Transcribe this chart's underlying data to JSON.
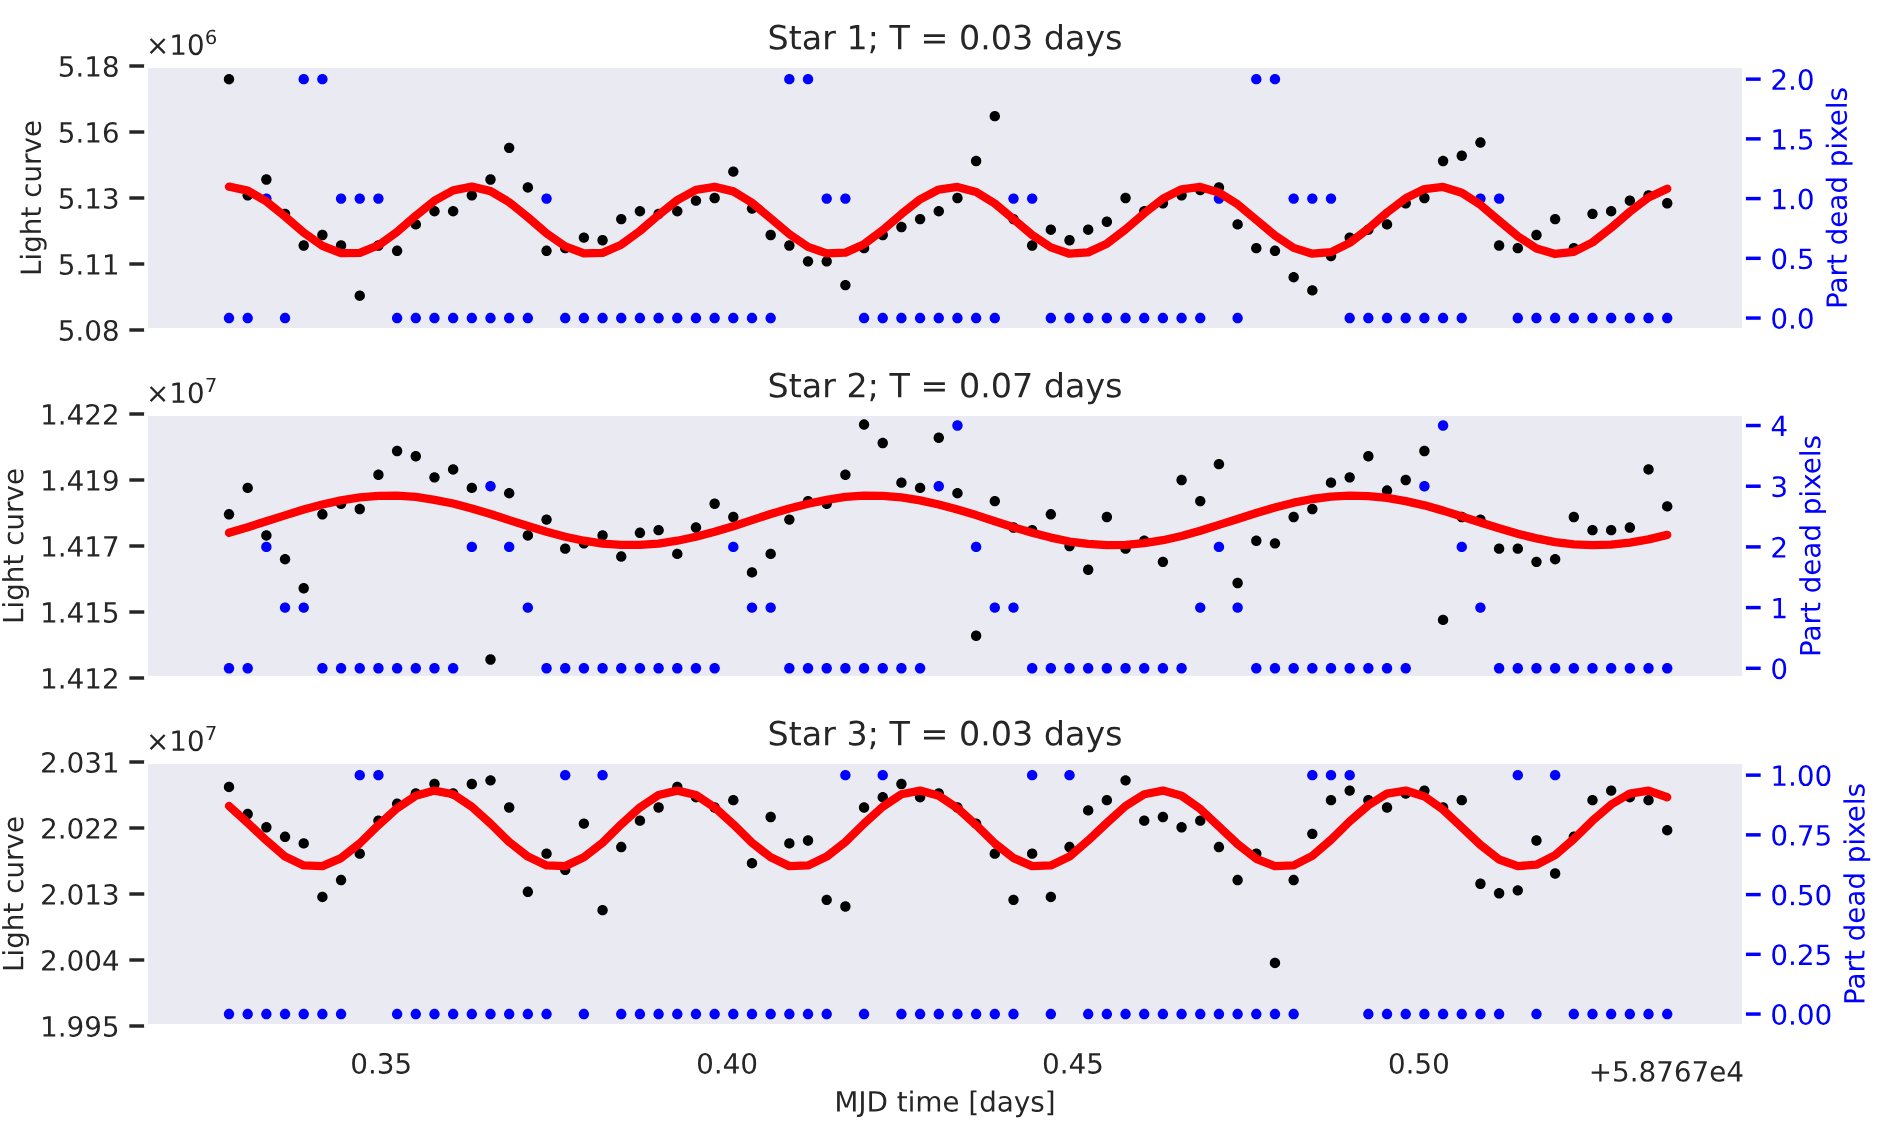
{
  "chart_data": [
    {
      "type": "scatter",
      "title": "Star 1; T = 0.03 days",
      "ylabel": "Light curve",
      "y2label": "Part dead pixels",
      "marker": "circle",
      "grid": false,
      "tick_labels": "y",
      "annotations": [
        "×10$^{6}$"
      ],
      "xlim": [
        0.316,
        0.547
      ],
      "ylim": [
        5.08,
        5.18
      ],
      "yticks": [
        5.08,
        {
          "value": 5.105,
          "label": "5.11"
        },
        5.13,
        {
          "value": 5.155,
          "label": "5.16"
        },
        5.18
      ],
      "y2lim": [
        -0.1,
        2.11
      ],
      "y2ticks": [
        {
          "value": 0,
          "label": "0.0"
        },
        0.5,
        {
          "value": 1,
          "label": "1.0"
        },
        1.5,
        {
          "value": 2,
          "label": "2.0"
        }
      ],
      "x": [
        0.328,
        0.3307,
        0.3334,
        0.3361,
        0.3388,
        0.3415,
        0.3442,
        0.3469,
        0.3496,
        0.3523,
        0.355,
        0.3577,
        0.3604,
        0.3631,
        0.3658,
        0.3685,
        0.3712,
        0.3739,
        0.3766,
        0.3793,
        0.382,
        0.3847,
        0.3874,
        0.3901,
        0.3928,
        0.3955,
        0.3982,
        0.4009,
        0.4036,
        0.4063,
        0.409,
        0.4117,
        0.4144,
        0.4171,
        0.4198,
        0.4225,
        0.4252,
        0.4279,
        0.4306,
        0.4333,
        0.436,
        0.4387,
        0.4414,
        0.4441,
        0.4468,
        0.4495,
        0.4522,
        0.4549,
        0.4576,
        0.4603,
        0.463,
        0.4657,
        0.4684,
        0.4711,
        0.4738,
        0.4765,
        0.4792,
        0.4819,
        0.4846,
        0.4873,
        0.49,
        0.4927,
        0.4954,
        0.4981,
        0.5008,
        0.5035,
        0.5062,
        0.5089,
        0.5116,
        0.5143,
        0.517,
        0.5197,
        0.5224,
        0.5251,
        0.5278,
        0.5305,
        0.5332,
        0.5359
      ],
      "series": [
        {
          "color": "#000000",
          "values": [
            5.175,
            5.131,
            5.137,
            5.124,
            5.112,
            5.116,
            5.112,
            5.093,
            5.112,
            5.11,
            5.12,
            5.125,
            5.125,
            5.131,
            5.137,
            5.149,
            5.134,
            5.11,
            5.111,
            5.115,
            5.114,
            5.122,
            5.125,
            5.124,
            5.125,
            5.129,
            5.13,
            5.14,
            5.126,
            5.116,
            5.112,
            5.106,
            5.106,
            5.097,
            5.111,
            5.116,
            5.119,
            5.122,
            5.125,
            5.13,
            5.144,
            5.161,
            5.122,
            5.112,
            5.118,
            5.114,
            5.118,
            5.121,
            5.13,
            5.125,
            5.128,
            5.131,
            5.133,
            5.134,
            5.12,
            5.111,
            5.11,
            5.1,
            5.095,
            5.108,
            5.115,
            5.118,
            5.12,
            5.128,
            5.13,
            5.144,
            5.146,
            5.151,
            5.112,
            5.111,
            5.116,
            5.122,
            5.111,
            5.124,
            5.125,
            5.129,
            5.131,
            5.128
          ]
        },
        {
          "type": "line",
          "marker": "none",
          "color": "#ff0000",
          "values": [
            5.1343,
            5.1328,
            5.1287,
            5.123,
            5.1169,
            5.1119,
            5.1091,
            5.1092,
            5.1121,
            5.1172,
            5.1233,
            5.129,
            5.1329,
            5.1343,
            5.1326,
            5.1284,
            5.1227,
            5.1166,
            5.1117,
            5.109,
            5.1092,
            5.1123,
            5.1175,
            5.1236,
            5.1292,
            5.1331,
            5.1342,
            5.1325,
            5.1282,
            5.1223,
            5.1163,
            5.1115,
            5.109,
            5.1093,
            5.1125,
            5.1178,
            5.1239,
            5.1295,
            5.1332,
            5.1342,
            5.1323,
            5.1279,
            5.122,
            5.116,
            5.1113,
            5.1089,
            5.1094,
            5.1127,
            5.1181,
            5.1242,
            5.1297,
            5.1333,
            5.1342,
            5.1321,
            5.1276,
            5.1217,
            5.1158,
            5.1111,
            5.1089,
            5.1095,
            5.113,
            5.1184,
            5.1245,
            5.1299,
            5.1334,
            5.1342,
            5.132,
            5.1274,
            5.1214,
            5.1155,
            5.1109,
            5.1088,
            5.1096,
            5.1132,
            5.1187,
            5.1248,
            5.1302,
            5.1335
          ]
        },
        {
          "color": "#0000ff",
          "axis": "y2",
          "values": [
            0,
            0,
            1,
            0,
            2,
            2,
            1,
            1,
            1,
            0,
            0,
            0,
            0,
            0,
            0,
            0,
            0,
            1,
            0,
            0,
            0,
            0,
            0,
            0,
            0,
            0,
            0,
            0,
            0,
            0,
            2,
            2,
            1,
            1,
            0,
            0,
            0,
            0,
            0,
            0,
            0,
            0,
            1,
            1,
            0,
            0,
            0,
            0,
            0,
            0,
            0,
            0,
            0,
            1,
            0,
            2,
            2,
            1,
            1,
            1,
            0,
            0,
            0,
            0,
            0,
            0,
            0,
            1,
            1,
            0,
            0,
            0,
            0,
            0,
            0,
            0,
            0,
            0
          ]
        }
      ]
    },
    {
      "type": "scatter",
      "title": "Star 2; T = 0.07 days",
      "ylabel": "Light curve",
      "y2label": "Part dead pixels",
      "marker": "circle",
      "grid": false,
      "tick_labels": "y",
      "annotations": [
        "×10$^{7}$"
      ],
      "xlim": [
        0.316,
        0.547
      ],
      "ylim": [
        1.412,
        1.422
      ],
      "yticks": [
        1.412,
        {
          "value": 1.4145,
          "label": "1.415"
        },
        1.417,
        {
          "value": 1.4195,
          "label": "1.419"
        },
        1.422
      ],
      "y2lim": [
        -0.16,
        4.19
      ],
      "y2ticks": [
        0,
        1,
        2,
        3,
        4
      ],
      "x": [
        0.328,
        0.3307,
        0.3334,
        0.3361,
        0.3388,
        0.3415,
        0.3442,
        0.3469,
        0.3496,
        0.3523,
        0.355,
        0.3577,
        0.3604,
        0.3631,
        0.3658,
        0.3685,
        0.3712,
        0.3739,
        0.3766,
        0.3793,
        0.382,
        0.3847,
        0.3874,
        0.3901,
        0.3928,
        0.3955,
        0.3982,
        0.4009,
        0.4036,
        0.4063,
        0.409,
        0.4117,
        0.4144,
        0.4171,
        0.4198,
        0.4225,
        0.4252,
        0.4279,
        0.4306,
        0.4333,
        0.436,
        0.4387,
        0.4414,
        0.4441,
        0.4468,
        0.4495,
        0.4522,
        0.4549,
        0.4576,
        0.4603,
        0.463,
        0.4657,
        0.4684,
        0.4711,
        0.4738,
        0.4765,
        0.4792,
        0.4819,
        0.4846,
        0.4873,
        0.49,
        0.4927,
        0.4954,
        0.4981,
        0.5008,
        0.5035,
        0.5062,
        0.5089,
        0.5116,
        0.5143,
        0.517,
        0.5197,
        0.5224,
        0.5251,
        0.5278,
        0.5305,
        0.5332,
        0.5359
      ],
      "series": [
        {
          "color": "#000000",
          "values": [
            1.4182,
            1.4192,
            1.4174,
            1.4165,
            1.4154,
            1.4182,
            1.4186,
            1.4184,
            1.4197,
            1.4206,
            1.4204,
            1.4196,
            1.4199,
            1.4192,
            1.4127,
            1.419,
            1.4174,
            1.418,
            1.4169,
            1.4171,
            1.4174,
            1.4166,
            1.4175,
            1.4176,
            1.4167,
            1.4177,
            1.4186,
            1.4181,
            1.416,
            1.4167,
            1.418,
            1.4187,
            1.4186,
            1.4197,
            1.4216,
            1.4209,
            1.4194,
            1.4192,
            1.4211,
            1.419,
            1.4136,
            1.4187,
            1.4177,
            1.4176,
            1.4182,
            1.417,
            1.4161,
            1.4181,
            1.4169,
            1.4172,
            1.4164,
            1.4195,
            1.4187,
            1.4201,
            1.4156,
            1.4172,
            1.4171,
            1.4181,
            1.4184,
            1.4194,
            1.4196,
            1.4204,
            1.4191,
            1.4195,
            1.4206,
            1.4142,
            1.4181,
            1.418,
            1.4169,
            1.4169,
            1.4164,
            1.4165,
            1.4181,
            1.4176,
            1.4176,
            1.4177,
            1.4199,
            1.4185
          ]
        },
        {
          "type": "line",
          "marker": "none",
          "color": "#ff0000",
          "values": [
            1.4175,
            1.41771,
            1.41794,
            1.41816,
            1.41838,
            1.41857,
            1.41873,
            1.41884,
            1.4189,
            1.41891,
            1.41886,
            1.41875,
            1.41861,
            1.41842,
            1.41821,
            1.41798,
            1.41776,
            1.41754,
            1.41735,
            1.4172,
            1.41709,
            1.41704,
            1.41704,
            1.41709,
            1.4172,
            1.41735,
            1.41754,
            1.41775,
            1.41798,
            1.41821,
            1.41842,
            1.4186,
            1.41875,
            1.41886,
            1.41891,
            1.4189,
            1.41884,
            1.41873,
            1.41857,
            1.41838,
            1.41817,
            1.41794,
            1.41771,
            1.4175,
            1.41732,
            1.41717,
            1.41708,
            1.41703,
            1.41704,
            1.41711,
            1.41722,
            1.41738,
            1.41758,
            1.4178,
            1.41802,
            1.41825,
            1.41846,
            1.41864,
            1.41878,
            1.41887,
            1.41891,
            1.41889,
            1.41882,
            1.4187,
            1.41854,
            1.41834,
            1.41812,
            1.41789,
            1.41767,
            1.41746,
            1.41729,
            1.41715,
            1.41706,
            1.41703,
            1.41705,
            1.41713,
            1.41725,
            1.41742
          ]
        },
        {
          "color": "#0000ff",
          "axis": "y2",
          "values": [
            0,
            0,
            2,
            1,
            1,
            0,
            0,
            0,
            0,
            0,
            0,
            0,
            0,
            2,
            3,
            2,
            1,
            0,
            0,
            0,
            0,
            0,
            0,
            0,
            0,
            0,
            0,
            2,
            1,
            1,
            0,
            0,
            0,
            0,
            0,
            0,
            0,
            0,
            3,
            4,
            2,
            1,
            1,
            0,
            0,
            0,
            0,
            0,
            0,
            0,
            0,
            0,
            1,
            2,
            1,
            0,
            0,
            0,
            0,
            0,
            0,
            0,
            0,
            0,
            3,
            4,
            2,
            1,
            0,
            0,
            0,
            0,
            0,
            0,
            0,
            0,
            0,
            0
          ]
        }
      ]
    },
    {
      "type": "scatter",
      "title": "Star 3; T = 0.03 days",
      "xlabel": "MJD time [days]",
      "ylabel": "Light curve",
      "y2label": "Part dead pixels",
      "marker": "circle",
      "grid": false,
      "annotations": [
        "×10$^{7}$",
        "+5.8767e4"
      ],
      "xlim": [
        0.316,
        0.547
      ],
      "xticks": [
        0.35,
        {
          "value": 0.4,
          "label": "0.40"
        },
        0.45,
        {
          "value": 0.5,
          "label": "0.50"
        }
      ],
      "ylim": [
        1.995,
        2.031
      ],
      "yticks": [
        1.995,
        2.004,
        2.013,
        2.022,
        2.031
      ],
      "y2lim": [
        -0.05,
        1.055
      ],
      "y2ticks": [
        {
          "value": 0,
          "label": "0.00"
        },
        0.25,
        {
          "value": 0.5,
          "label": "0.50"
        },
        0.75,
        {
          "value": 1,
          "label": "1.00"
        }
      ],
      "x": [
        0.328,
        0.3307,
        0.3334,
        0.3361,
        0.3388,
        0.3415,
        0.3442,
        0.3469,
        0.3496,
        0.3523,
        0.355,
        0.3577,
        0.3604,
        0.3631,
        0.3658,
        0.3685,
        0.3712,
        0.3739,
        0.3766,
        0.3793,
        0.382,
        0.3847,
        0.3874,
        0.3901,
        0.3928,
        0.3955,
        0.3982,
        0.4009,
        0.4036,
        0.4063,
        0.409,
        0.4117,
        0.4144,
        0.4171,
        0.4198,
        0.4225,
        0.4252,
        0.4279,
        0.4306,
        0.4333,
        0.436,
        0.4387,
        0.4414,
        0.4441,
        0.4468,
        0.4495,
        0.4522,
        0.4549,
        0.4576,
        0.4603,
        0.463,
        0.4657,
        0.4684,
        0.4711,
        0.4738,
        0.4765,
        0.4792,
        0.4819,
        0.4846,
        0.4873,
        0.49,
        0.4927,
        0.4954,
        0.4981,
        0.5008,
        0.5035,
        0.5062,
        0.5089,
        0.5116,
        0.5143,
        0.517,
        0.5197,
        0.5224,
        0.5251,
        0.5278,
        0.5305,
        0.5332,
        0.5359
      ],
      "series": [
        {
          "color": "#000000",
          "values": [
            2.0276,
            2.0239,
            2.0221,
            2.0208,
            2.0199,
            2.0126,
            2.0149,
            2.0185,
            2.023,
            2.0253,
            2.0267,
            2.028,
            2.0267,
            2.028,
            2.0285,
            2.0248,
            2.0133,
            2.0185,
            2.0163,
            2.0226,
            2.0108,
            2.0194,
            2.023,
            2.0248,
            2.0276,
            2.0262,
            2.0248,
            2.0258,
            2.0172,
            2.0235,
            2.0199,
            2.0203,
            2.0122,
            2.0113,
            2.0248,
            2.0262,
            2.028,
            2.0262,
            2.0267,
            2.0248,
            2.0226,
            2.0185,
            2.0122,
            2.0185,
            2.0126,
            2.0194,
            2.0244,
            2.0258,
            2.0285,
            2.023,
            2.0235,
            2.0221,
            2.023,
            2.0194,
            2.0149,
            2.0185,
            2.0036,
            2.0149,
            2.0212,
            2.0258,
            2.0271,
            2.0258,
            2.0248,
            2.0267,
            2.0271,
            2.0248,
            2.0258,
            2.0144,
            2.0131,
            2.0135,
            2.0203,
            2.0158,
            2.0208,
            2.0258,
            2.0271,
            2.0262,
            2.0258,
            2.0217
          ]
        },
        {
          "type": "line",
          "marker": "none",
          "color": "#ff0000",
          "values": [
            2.025,
            2.0227,
            2.0203,
            2.0181,
            2.0169,
            2.0168,
            2.0179,
            2.0199,
            2.0224,
            2.0247,
            2.0264,
            2.0271,
            2.0266,
            2.0249,
            2.0226,
            2.0201,
            2.0181,
            2.0169,
            2.0168,
            2.018,
            2.02,
            2.0225,
            2.0248,
            2.0265,
            2.0271,
            2.0265,
            2.0248,
            2.0225,
            2.02,
            2.018,
            2.0168,
            2.0169,
            2.0181,
            2.0201,
            2.0226,
            2.0249,
            2.0266,
            2.0271,
            2.0264,
            2.0247,
            2.0224,
            2.0199,
            2.0179,
            2.0168,
            2.0169,
            2.0181,
            2.0203,
            2.0227,
            2.025,
            2.0266,
            2.0271,
            2.0264,
            2.0246,
            2.0222,
            2.0198,
            2.0178,
            2.0168,
            2.0169,
            2.0182,
            2.0204,
            2.0229,
            2.0251,
            2.0267,
            2.0271,
            2.0263,
            2.0245,
            2.0221,
            2.0197,
            2.0177,
            2.0168,
            2.017,
            2.0183,
            2.0205,
            2.023,
            2.0252,
            2.0267,
            2.0271,
            2.0262
          ]
        },
        {
          "color": "#0000ff",
          "axis": "y2",
          "values": [
            0,
            0,
            0,
            0,
            0,
            0,
            0,
            1,
            1,
            0,
            0,
            0,
            0,
            0,
            0,
            0,
            0,
            0,
            1,
            0,
            1,
            0,
            0,
            0,
            0,
            0,
            0,
            0,
            0,
            0,
            0,
            0,
            0,
            1,
            0,
            1,
            0,
            0,
            0,
            0,
            0,
            0,
            0,
            1,
            0,
            1,
            0,
            0,
            0,
            0,
            0,
            0,
            0,
            0,
            0,
            0,
            0,
            0,
            1,
            1,
            1,
            0,
            0,
            0,
            0,
            0,
            0,
            0,
            0,
            1,
            0,
            1,
            0,
            0,
            0,
            0,
            0,
            0
          ]
        }
      ]
    }
  ]
}
